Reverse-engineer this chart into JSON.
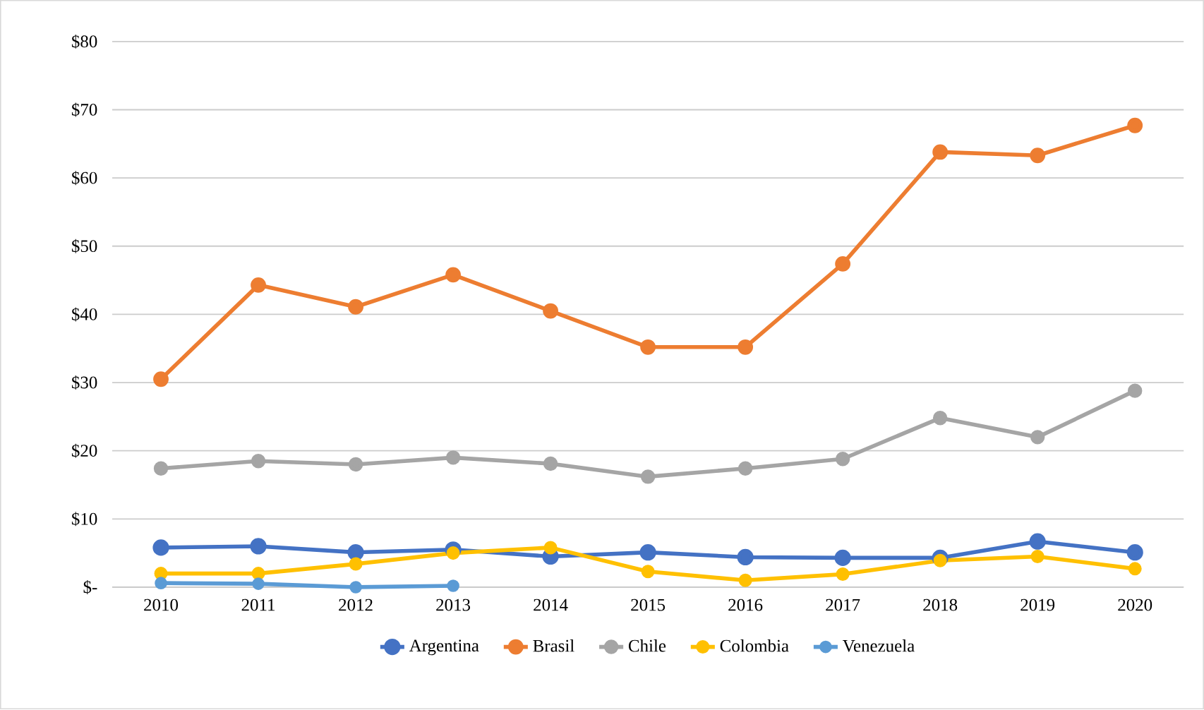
{
  "chart_data": {
    "type": "line",
    "categories": [
      "2010",
      "2011",
      "2012",
      "2013",
      "2014",
      "2015",
      "2016",
      "2017",
      "2018",
      "2019",
      "2020"
    ],
    "series": [
      {
        "name": "Argentina",
        "color": "#4472c4",
        "values": [
          5.8,
          6.0,
          5.1,
          5.5,
          4.5,
          5.1,
          4.4,
          4.3,
          4.3,
          6.7,
          5.1
        ]
      },
      {
        "name": "Brasil",
        "color": "#ed7d31",
        "values": [
          30.5,
          44.3,
          41.1,
          45.8,
          40.5,
          35.2,
          35.2,
          47.4,
          63.8,
          63.3,
          67.7
        ]
      },
      {
        "name": "Chile",
        "color": "#a5a5a5",
        "values": [
          17.4,
          18.5,
          18.0,
          19.0,
          18.1,
          16.2,
          17.4,
          18.8,
          24.8,
          22.0,
          28.8
        ]
      },
      {
        "name": "Colombia",
        "color": "#ffc000",
        "values": [
          2.0,
          2.0,
          3.4,
          5.0,
          5.8,
          2.3,
          1.0,
          1.9,
          3.9,
          4.5,
          2.7
        ]
      },
      {
        "name": "Venezuela",
        "color": "#5b9bd5",
        "values": [
          0.6,
          0.5,
          0.0,
          0.2,
          null,
          null,
          null,
          null,
          null,
          null,
          null
        ]
      }
    ],
    "ylim": [
      0,
      80
    ],
    "yticks": [
      {
        "value": 0,
        "label": "$-"
      },
      {
        "value": 10,
        "label": "$10"
      },
      {
        "value": 20,
        "label": "$20"
      },
      {
        "value": 30,
        "label": "$30"
      },
      {
        "value": 40,
        "label": "$40"
      },
      {
        "value": 50,
        "label": "$50"
      },
      {
        "value": 60,
        "label": "$60"
      },
      {
        "value": 70,
        "label": "$70"
      },
      {
        "value": 80,
        "label": "$80"
      }
    ],
    "grid": "y",
    "legend": "bottom",
    "marker": "circle",
    "line_style": "solid"
  }
}
